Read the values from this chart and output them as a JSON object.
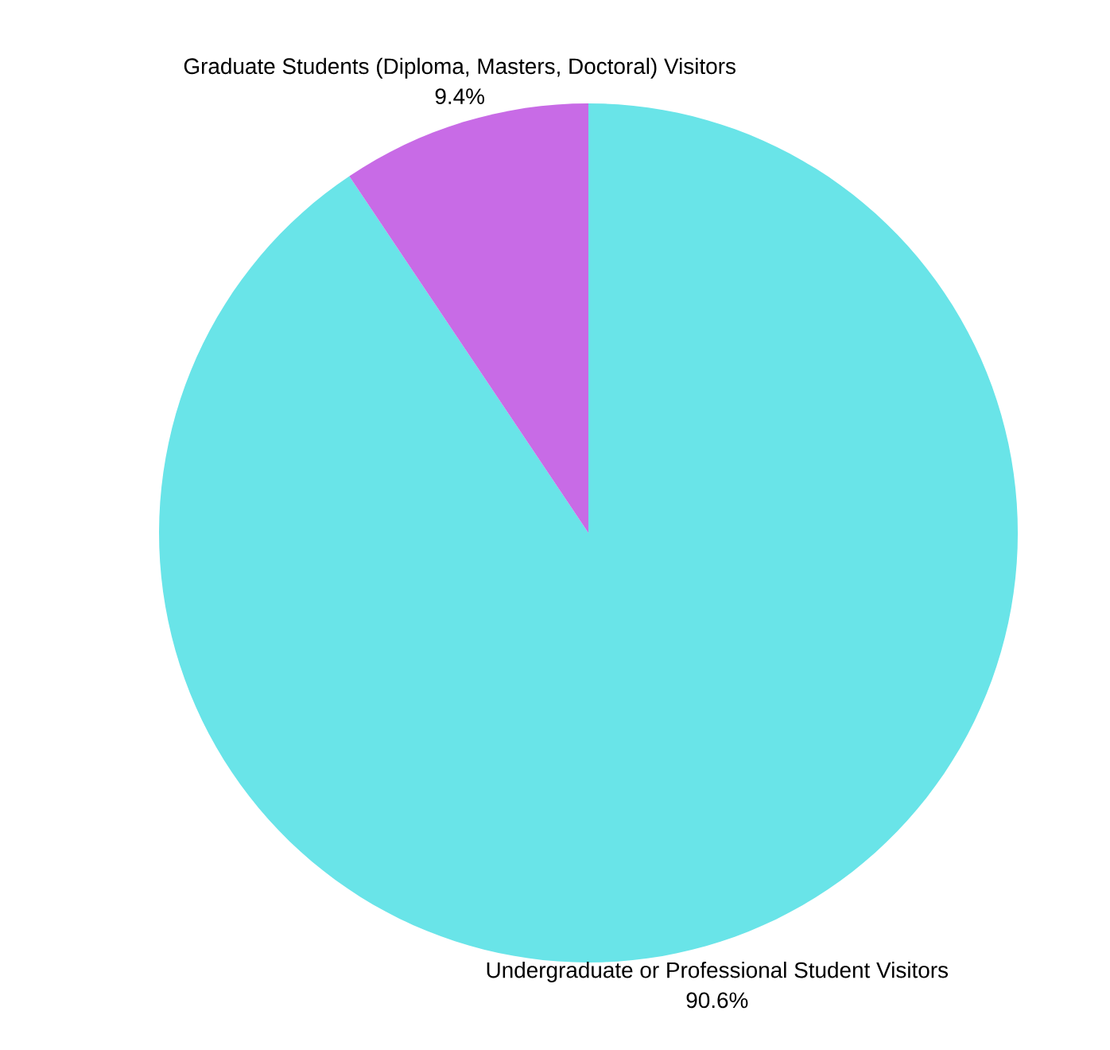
{
  "chart_data": {
    "type": "pie",
    "categories": [
      "Undergraduate or Professional Student Visitors",
      "Graduate Students (Diploma, Masters, Doctoral) Visitors"
    ],
    "values": [
      90.6,
      9.4
    ],
    "value_labels": [
      "90.6%",
      "9.4%"
    ],
    "colors": [
      "#69e4e8",
      "#c86be6"
    ]
  }
}
